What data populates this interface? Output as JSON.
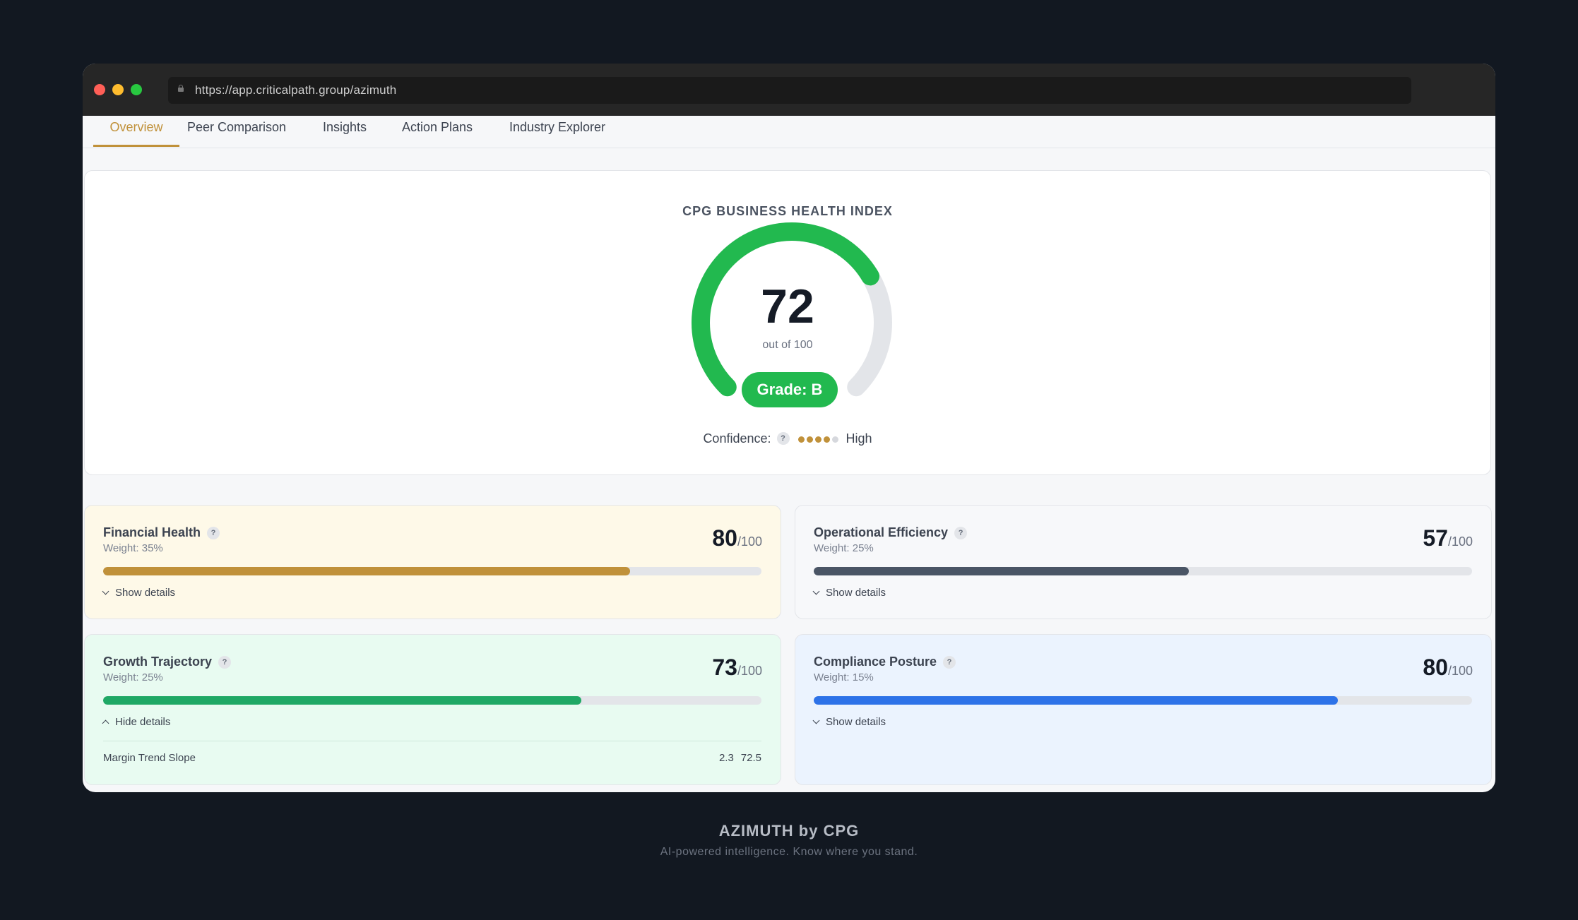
{
  "browser": {
    "url": "https://app.criticalpath.group/azimuth"
  },
  "tabs": [
    {
      "label": "Overview",
      "active": true
    },
    {
      "label": "Peer Comparison",
      "active": false
    },
    {
      "label": "Insights",
      "active": false
    },
    {
      "label": "Action Plans",
      "active": false
    },
    {
      "label": "Industry Explorer",
      "active": false
    }
  ],
  "index": {
    "title": "CPG BUSINESS HEALTH INDEX",
    "score": "72",
    "score_fraction": 0.72,
    "score_sub": "out of 100",
    "grade": "Grade: B",
    "confidence_label": "Confidence:",
    "confidence_help": "?",
    "confidence_filled": 4,
    "confidence_total": 5,
    "confidence_level": "High"
  },
  "cards": [
    {
      "name": "Financial Health",
      "help": "?",
      "weight": "Weight: 35%",
      "score": "80",
      "denom": "/100",
      "fraction": 0.8,
      "bg": "#fef9e8",
      "fill": "#c0913a",
      "toggle": "Show details"
    },
    {
      "name": "Operational Efficiency",
      "help": "?",
      "weight": "Weight: 25%",
      "score": "57",
      "denom": "/100",
      "fraction": 0.57,
      "bg": "#f7f8fa",
      "fill": "#4a5565",
      "toggle": "Show details"
    },
    {
      "name": "Growth Trajectory",
      "help": "?",
      "weight": "Weight: 25%",
      "score": "73",
      "denom": "/100",
      "fraction": 0.726,
      "bg": "#e8fbf1",
      "fill": "#1fa865",
      "toggle": "Hide details",
      "detail": {
        "label": "Margin Trend Slope",
        "value1": "2.3",
        "value2": "72.5"
      }
    },
    {
      "name": "Compliance Posture",
      "help": "?",
      "weight": "Weight: 15%",
      "score": "80",
      "denom": "/100",
      "fraction": 0.796,
      "bg": "#ebf3fe",
      "fill": "#2d72e8",
      "toggle": "Show details"
    }
  ],
  "colors": {
    "accent": "#c0913a",
    "gauge_green": "#22b94f",
    "gauge_track": "#e3e5e9"
  },
  "footer": {
    "title": "AZIMUTH by CPG",
    "subtitle": "AI-powered intelligence. Know where you stand."
  }
}
